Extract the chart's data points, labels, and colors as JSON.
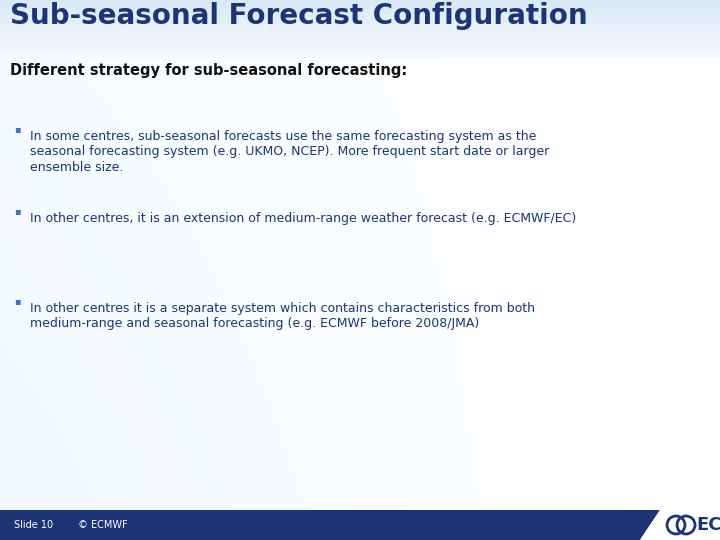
{
  "title": "Sub-seasonal Forecast Configuration",
  "subtitle": "Different strategy for sub-seasonal forecasting:",
  "title_color": "#1e3575",
  "subtitle_color": "#111111",
  "text_color": "#1e3575",
  "bullet_color": "#4472c4",
  "footer_bar_color": "#1e3575",
  "footer_text": "Slide 10        © ECMWF",
  "footer_text_color": "#ffffff",
  "ecmwf_text_color": "#1e3575",
  "bullet1_lines": [
    "In some centres, sub-seasonal forecasts use the same forecasting system as the",
    "seasonal forecasting system (e.g. UKMO, NCEP). More frequent start date or larger",
    "ensemble size."
  ],
  "bullet2": "In other centres, it is an extension of medium-range weather forecast (e.g. ECMWF/EC)",
  "bullet3_lines": [
    "In other centres it is a separate system which contains characteristics from both",
    "medium-range and seasonal forecasting (e.g. ECMWF before 2008/JMA)"
  ]
}
